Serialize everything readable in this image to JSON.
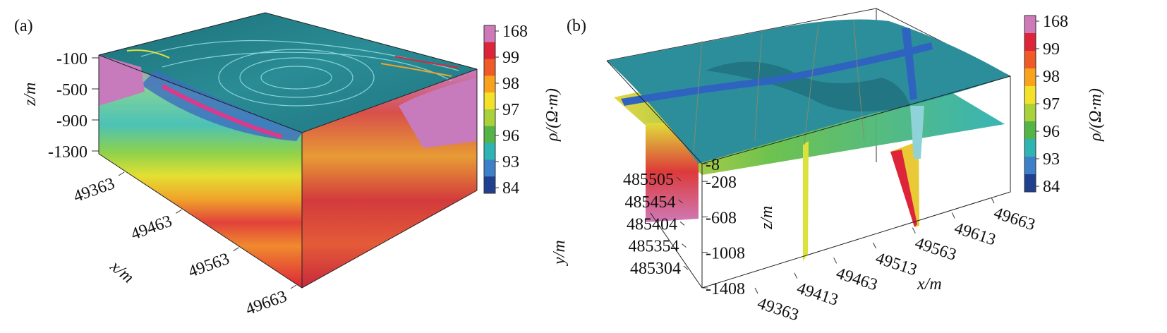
{
  "chart_data": [
    {
      "type": "heatmap",
      "panel_label": "(a)",
      "z_axis": {
        "label": "z/m",
        "ticks": [
          -100,
          -500,
          -900,
          -1300
        ]
      },
      "x_axis": {
        "label": "x/m",
        "ticks": [
          49363,
          49463,
          49563,
          49663
        ]
      },
      "colorbar": {
        "label": "ρ/(Ω·m)",
        "ticks": [
          168,
          99,
          98,
          97,
          96,
          93,
          84
        ],
        "colors": [
          "#cf7ab8",
          "#dd2438",
          "#ef5a26",
          "#f9a21e",
          "#f4e22a",
          "#a8d13a",
          "#54b446",
          "#2fb4b4",
          "#3d7fc8",
          "#1f3f8f"
        ]
      }
    },
    {
      "type": "heatmap",
      "panel_label": "(b)",
      "z_axis": {
        "label": "z/m",
        "ticks": [
          -8,
          -208,
          -608,
          -1008,
          -1408
        ]
      },
      "y_axis": {
        "label": "y/m",
        "ticks": [
          485505,
          485454,
          485404,
          485354,
          485304
        ]
      },
      "x_axis": {
        "label": "x/m",
        "ticks": [
          49363,
          49413,
          49463,
          49513,
          49563,
          49613,
          49663
        ]
      },
      "colorbar": {
        "label": "ρ/(Ω·m)",
        "ticks": [
          168,
          99,
          98,
          97,
          96,
          93,
          84
        ],
        "colors": [
          "#cf7ab8",
          "#dd2438",
          "#ef5a26",
          "#f9a21e",
          "#f4e22a",
          "#a8d13a",
          "#54b446",
          "#2fb4b4",
          "#3d7fc8",
          "#1f3f8f"
        ]
      }
    }
  ]
}
